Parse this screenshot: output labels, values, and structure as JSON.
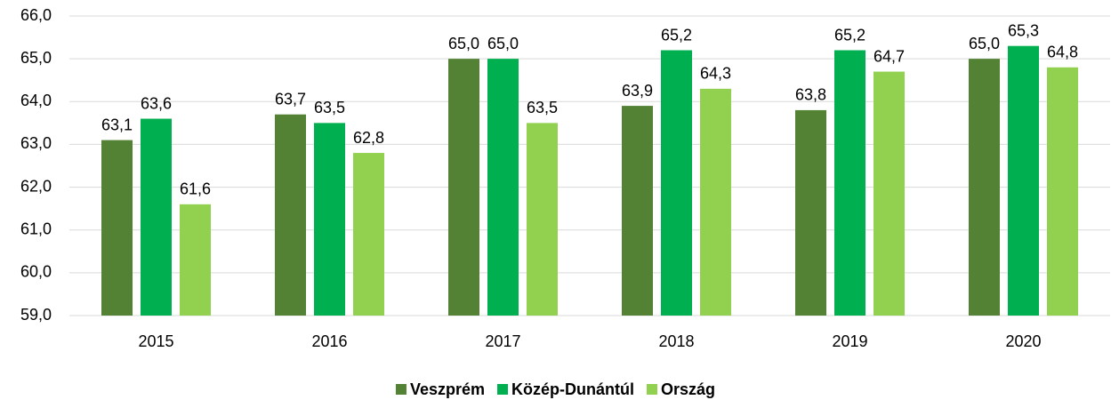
{
  "chart_data": {
    "type": "bar",
    "categories": [
      "2015",
      "2016",
      "2017",
      "2018",
      "2019",
      "2020"
    ],
    "series": [
      {
        "name": "Veszprém",
        "color": "#548235",
        "values": [
          63.1,
          63.7,
          65.0,
          63.9,
          63.8,
          65.0
        ],
        "value_labels": [
          "63,1",
          "63,7",
          "65,0",
          "63,9",
          "63,8",
          "65,0"
        ]
      },
      {
        "name": "Közép-Dunántúl",
        "color": "#00b050",
        "values": [
          63.6,
          63.5,
          65.0,
          65.2,
          65.2,
          65.3
        ],
        "value_labels": [
          "63,6",
          "63,5",
          "65,0",
          "65,2",
          "65,2",
          "65,3"
        ]
      },
      {
        "name": "Ország",
        "color": "#92d050",
        "values": [
          61.6,
          62.8,
          63.5,
          64.3,
          64.7,
          64.8
        ],
        "value_labels": [
          "61,6",
          "62,8",
          "63,5",
          "64,3",
          "64,7",
          "64,8"
        ]
      }
    ],
    "ylim": [
      59,
      66
    ],
    "yticks": [
      {
        "value": 59,
        "label": "59,0"
      },
      {
        "value": 60,
        "label": "60,0"
      },
      {
        "value": 61,
        "label": "61,0"
      },
      {
        "value": 62,
        "label": "62,0"
      },
      {
        "value": 63,
        "label": "63,0"
      },
      {
        "value": 64,
        "label": "64,0"
      },
      {
        "value": 65,
        "label": "65,0"
      },
      {
        "value": 66,
        "label": "66,0"
      }
    ],
    "grid": true,
    "legend": "bottom"
  }
}
